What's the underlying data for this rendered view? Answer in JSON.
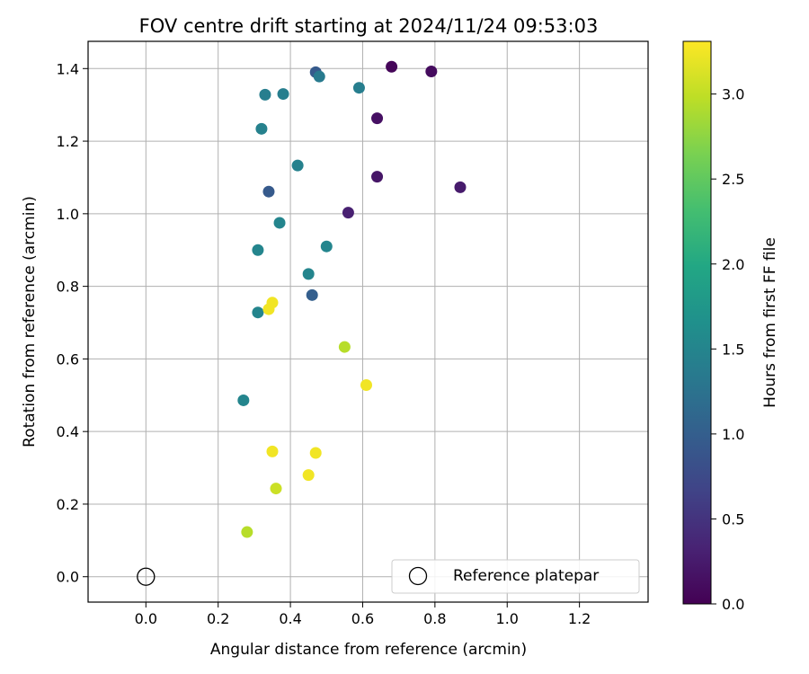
{
  "chart_data": {
    "type": "scatter",
    "title": "FOV centre drift starting at 2024/11/24 09:53:03",
    "xlabel": "Angular distance from reference (arcmin)",
    "ylabel": "Rotation from reference (arcmin)",
    "xlim": [
      -0.16,
      1.39
    ],
    "ylim": [
      -0.07,
      1.475
    ],
    "xticks": [
      "0.0",
      "0.2",
      "0.4",
      "0.6",
      "0.8",
      "1.0",
      "1.2"
    ],
    "yticks": [
      "0.0",
      "0.2",
      "0.4",
      "0.6",
      "0.8",
      "1.0",
      "1.2",
      "1.4"
    ],
    "grid": true,
    "legend": {
      "placement": "bottom-right",
      "label": "Reference platepar"
    },
    "reference_point": {
      "x": 0.0,
      "y": 0.0
    },
    "colorbar": {
      "label": "Hours from first FF file",
      "colormap": "viridis",
      "range": [
        0.0,
        3.31
      ],
      "ticks": [
        "0.0",
        "0.5",
        "1.0",
        "1.5",
        "2.0",
        "2.5",
        "3.0"
      ]
    },
    "points": [
      {
        "x": 0.68,
        "y": 1.405,
        "hours": 0.05
      },
      {
        "x": 0.79,
        "y": 1.392,
        "hours": 0.1
      },
      {
        "x": 0.64,
        "y": 1.263,
        "hours": 0.15
      },
      {
        "x": 0.64,
        "y": 1.102,
        "hours": 0.2
      },
      {
        "x": 0.87,
        "y": 1.073,
        "hours": 0.25
      },
      {
        "x": 0.56,
        "y": 1.003,
        "hours": 0.3
      },
      {
        "x": 0.47,
        "y": 1.39,
        "hours": 0.95
      },
      {
        "x": 0.34,
        "y": 1.061,
        "hours": 0.95
      },
      {
        "x": 0.46,
        "y": 0.776,
        "hours": 1.0
      },
      {
        "x": 0.48,
        "y": 1.378,
        "hours": 1.35
      },
      {
        "x": 0.59,
        "y": 1.347,
        "hours": 1.4
      },
      {
        "x": 0.33,
        "y": 1.328,
        "hours": 1.4
      },
      {
        "x": 0.38,
        "y": 1.33,
        "hours": 1.4
      },
      {
        "x": 0.32,
        "y": 1.234,
        "hours": 1.45
      },
      {
        "x": 0.42,
        "y": 1.133,
        "hours": 1.45
      },
      {
        "x": 0.37,
        "y": 0.975,
        "hours": 1.5
      },
      {
        "x": 0.31,
        "y": 0.9,
        "hours": 1.5
      },
      {
        "x": 0.5,
        "y": 0.91,
        "hours": 1.5
      },
      {
        "x": 0.45,
        "y": 0.834,
        "hours": 1.5
      },
      {
        "x": 0.31,
        "y": 0.728,
        "hours": 1.5
      },
      {
        "x": 0.27,
        "y": 0.486,
        "hours": 1.5
      },
      {
        "x": 0.55,
        "y": 0.633,
        "hours": 2.95
      },
      {
        "x": 0.28,
        "y": 0.123,
        "hours": 2.95
      },
      {
        "x": 0.36,
        "y": 0.243,
        "hours": 3.05
      },
      {
        "x": 0.35,
        "y": 0.755,
        "hours": 3.25
      },
      {
        "x": 0.34,
        "y": 0.737,
        "hours": 3.25
      },
      {
        "x": 0.61,
        "y": 0.528,
        "hours": 3.25
      },
      {
        "x": 0.35,
        "y": 0.345,
        "hours": 3.25
      },
      {
        "x": 0.47,
        "y": 0.341,
        "hours": 3.25
      },
      {
        "x": 0.45,
        "y": 0.28,
        "hours": 3.25
      }
    ]
  }
}
